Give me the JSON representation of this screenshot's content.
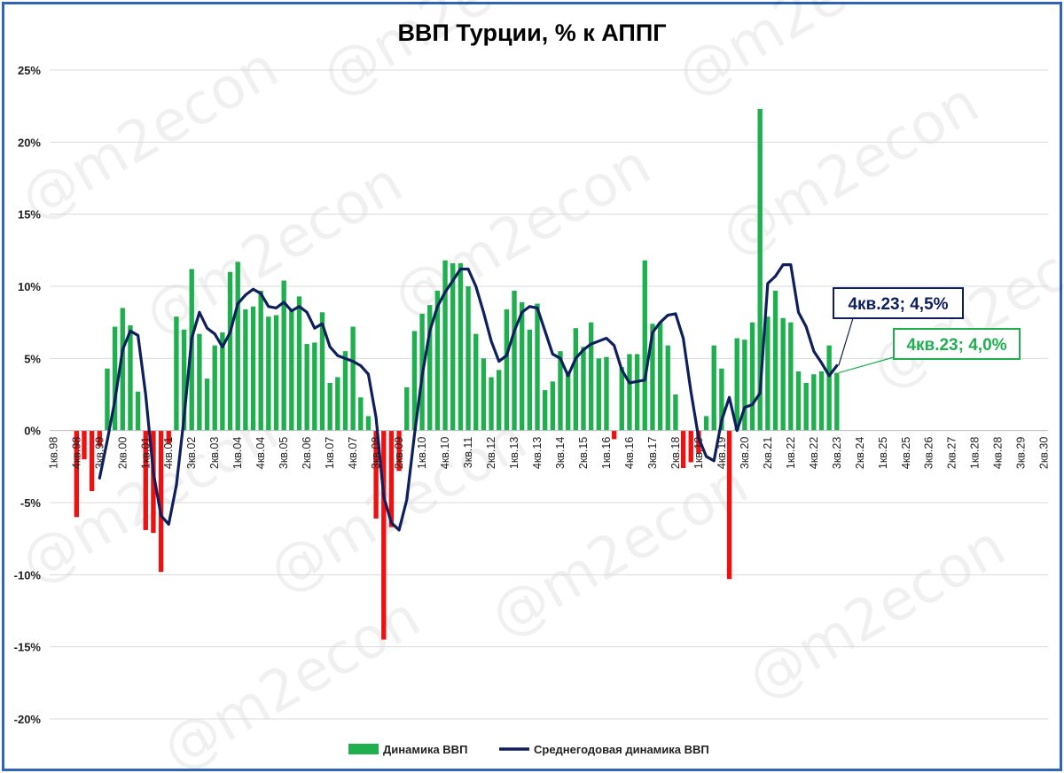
{
  "chart_data": {
    "type": "bar+line",
    "title": "ВВП Турции, % к АППГ",
    "xlabel": "",
    "ylabel": "",
    "ylim": [
      -20,
      25
    ],
    "y_ticks": [
      "25%",
      "20%",
      "15%",
      "10%",
      "5%",
      "0%",
      "-5%",
      "-10%",
      "-15%",
      "-20%"
    ],
    "y_tick_values": [
      25,
      20,
      15,
      10,
      5,
      0,
      -5,
      -10,
      -15,
      -20
    ],
    "grid": "horizontal",
    "legend_position": "bottom",
    "first_quarter": "1кв.98",
    "x_tick_labels": [
      "1кв.98",
      "4кв.98",
      "3кв.99",
      "2кв.00",
      "1кв.01",
      "4кв.01",
      "3кв.02",
      "2кв.03",
      "1кв.04",
      "4кв.04",
      "3кв.05",
      "2кв.06",
      "1кв.07",
      "4кв.07",
      "3кв.08",
      "2кв.09",
      "1кв.10",
      "4кв.10",
      "3кв.11",
      "2кв.12",
      "1кв.13",
      "4кв.13",
      "3кв.14",
      "2кв.15",
      "1кв.16",
      "4кв.16",
      "3кв.17",
      "2кв.18",
      "1кв.19",
      "4кв.19",
      "3кв.20",
      "2кв.21",
      "1кв.22",
      "4кв.22",
      "3кв.23",
      "2кв.24",
      "1кв.25",
      "4кв.25",
      "3кв.26",
      "2кв.27",
      "1кв.28",
      "4кв.28",
      "3кв.29",
      "2кв.30"
    ],
    "series": [
      {
        "name": "Динамика ВВП",
        "type": "bar",
        "color_positive": "#1faf4f",
        "color_negative": "#ee1111",
        "values": [
          null,
          null,
          null,
          -6.0,
          -2.0,
          -4.2,
          -1.1,
          4.3,
          7.2,
          8.5,
          7.3,
          2.7,
          -6.9,
          -7.1,
          -9.8,
          -0.9,
          7.9,
          7.0,
          11.2,
          6.7,
          3.6,
          5.9,
          6.8,
          11.0,
          11.7,
          8.4,
          8.6,
          9.7,
          7.9,
          8.0,
          10.4,
          8.3,
          9.3,
          6.0,
          6.1,
          8.2,
          3.3,
          3.7,
          5.5,
          7.2,
          2.3,
          1.0,
          -6.1,
          -14.5,
          -6.7,
          -2.8,
          3.0,
          6.9,
          8.1,
          8.7,
          9.7,
          11.8,
          11.6,
          11.6,
          10.0,
          6.7,
          5.0,
          3.7,
          4.2,
          8.4,
          9.7,
          8.9,
          7.0,
          8.8,
          2.8,
          3.4,
          5.5,
          4.1,
          7.1,
          5.8,
          7.5,
          5.0,
          5.1,
          -0.6,
          4.4,
          5.3,
          5.3,
          11.8,
          7.4,
          7.5,
          5.9,
          2.5,
          -2.6,
          -2.2,
          -1.6,
          1.0,
          5.9,
          4.3,
          -10.3,
          6.4,
          6.3,
          7.5,
          22.3,
          7.9,
          9.7,
          7.8,
          7.5,
          4.1,
          3.3,
          3.9,
          4.1,
          5.9,
          4.0
        ],
        "end_annotation": "4кв.23; 4,0%"
      },
      {
        "name": "Среднегодовая динамика ВВП",
        "type": "line",
        "color": "#0d1f5c",
        "values": [
          null,
          null,
          null,
          null,
          null,
          null,
          -3.3,
          -0.7,
          2.1,
          5.6,
          6.9,
          6.6,
          2.5,
          -2.9,
          -5.9,
          -6.5,
          -3.8,
          0.9,
          6.4,
          8.2,
          7.1,
          6.7,
          5.8,
          6.8,
          8.8,
          9.4,
          9.8,
          9.5,
          8.6,
          8.5,
          8.9,
          8.3,
          8.6,
          8.2,
          7.1,
          7.4,
          5.8,
          5.2,
          5.0,
          4.8,
          4.5,
          3.9,
          0.9,
          -4.6,
          -6.4,
          -6.9,
          -4.8,
          -0.3,
          3.8,
          6.9,
          8.6,
          9.6,
          10.4,
          11.2,
          11.2,
          10.0,
          8.2,
          6.2,
          4.8,
          5.2,
          6.9,
          8.2,
          8.6,
          8.5,
          6.9,
          5.3,
          5.0,
          3.8,
          5.0,
          5.6,
          6.0,
          6.2,
          6.4,
          5.9,
          4.2,
          3.3,
          3.4,
          3.5,
          6.8,
          7.5,
          8.0,
          8.1,
          6.4,
          2.7,
          -0.5,
          -1.8,
          -2.1,
          0.7,
          2.3,
          0.0,
          1.6,
          1.8,
          2.6,
          10.2,
          10.7,
          11.5,
          11.5,
          8.2,
          7.2,
          5.5,
          4.7,
          3.8,
          4.5
        ],
        "end_annotation": "4кв.23; 4,5%"
      }
    ]
  },
  "watermark": "@m2econ",
  "colors": {
    "frame_border": "#2e65b5",
    "gridline": "#d9d9d9",
    "annotation_line_border": "#0d1f5c",
    "annotation_bar_border": "#1faf4f"
  }
}
